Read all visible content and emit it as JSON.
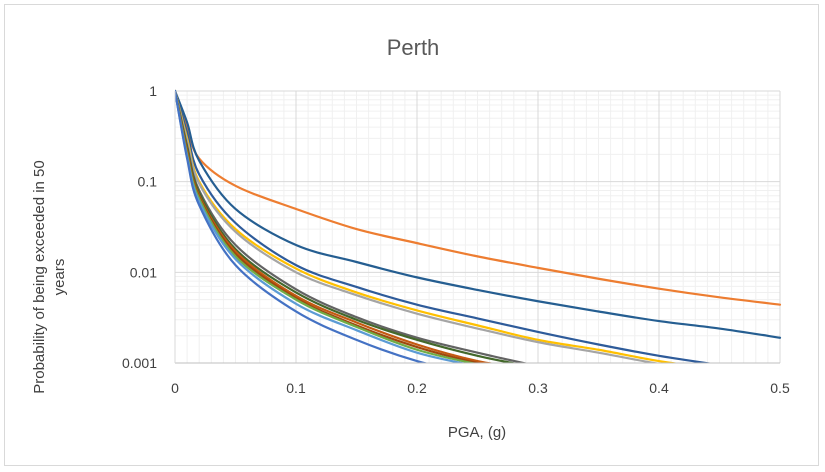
{
  "chart_data": {
    "type": "line",
    "title": "Perth",
    "xlabel": "PGA, (g)",
    "ylabel_lines": [
      "Probability of being exceeded in 50",
      "years"
    ],
    "xlim": [
      0,
      0.5
    ],
    "ylim": [
      0.001,
      1
    ],
    "yscale": "log",
    "grid": "major and minor",
    "legend": "none",
    "x_ticks": [
      {
        "v": 0,
        "label": "0"
      },
      {
        "v": 0.1,
        "label": "0.1"
      },
      {
        "v": 0.2,
        "label": "0.2"
      },
      {
        "v": 0.3,
        "label": "0.3"
      },
      {
        "v": 0.4,
        "label": "0.4"
      },
      {
        "v": 0.5,
        "label": "0.5"
      }
    ],
    "y_ticks": [
      {
        "v": 1,
        "label": "1"
      },
      {
        "v": 0.1,
        "label": "0.1"
      },
      {
        "v": 0.01,
        "label": "0.01"
      },
      {
        "v": 0.001,
        "label": "0.001"
      }
    ],
    "series": [
      {
        "color": "#ED7D31",
        "x": [
          0,
          0.01,
          0.02,
          0.05,
          0.1,
          0.15,
          0.2,
          0.25,
          0.3,
          0.35,
          0.4,
          0.45,
          0.5
        ],
        "y": [
          1,
          0.4,
          0.18,
          0.09,
          0.05,
          0.03,
          0.021,
          0.015,
          0.0112,
          0.0085,
          0.0066,
          0.0053,
          0.0044
        ]
      },
      {
        "color": "#255E91",
        "x": [
          0,
          0.01,
          0.02,
          0.05,
          0.1,
          0.15,
          0.2,
          0.25,
          0.3,
          0.35,
          0.4,
          0.45,
          0.5
        ],
        "y": [
          1,
          0.45,
          0.17,
          0.05,
          0.02,
          0.013,
          0.0088,
          0.0064,
          0.0048,
          0.0037,
          0.0029,
          0.0024,
          0.0019
        ]
      },
      {
        "color": "#2E5B9A",
        "x": [
          0,
          0.01,
          0.02,
          0.05,
          0.1,
          0.15,
          0.2,
          0.25,
          0.3,
          0.35,
          0.4,
          0.45
        ],
        "y": [
          1,
          0.35,
          0.12,
          0.035,
          0.012,
          0.0069,
          0.0044,
          0.0031,
          0.0022,
          0.0016,
          0.0012,
          0.00095
        ]
      },
      {
        "color": "#FFC000",
        "x": [
          0,
          0.01,
          0.02,
          0.05,
          0.1,
          0.15,
          0.2,
          0.25,
          0.3,
          0.35,
          0.4,
          0.45
        ],
        "y": [
          1,
          0.3,
          0.1,
          0.03,
          0.011,
          0.006,
          0.0038,
          0.0026,
          0.0018,
          0.0014,
          0.00105,
          0.00085
        ]
      },
      {
        "color": "#A5A5A5",
        "x": [
          0,
          0.01,
          0.02,
          0.05,
          0.1,
          0.15,
          0.2,
          0.25,
          0.3,
          0.35,
          0.4,
          0.45
        ],
        "y": [
          1,
          0.28,
          0.095,
          0.028,
          0.01,
          0.0056,
          0.0035,
          0.0024,
          0.0017,
          0.0013,
          0.00098,
          0.0008
        ]
      },
      {
        "color": "#636363",
        "x": [
          0,
          0.01,
          0.02,
          0.05,
          0.1,
          0.15,
          0.2,
          0.25,
          0.3
        ],
        "y": [
          1,
          0.25,
          0.08,
          0.02,
          0.0065,
          0.0032,
          0.0019,
          0.0013,
          0.00092
        ]
      },
      {
        "color": "#43682B",
        "x": [
          0,
          0.01,
          0.02,
          0.05,
          0.1,
          0.15,
          0.2,
          0.25,
          0.3
        ],
        "y": [
          1,
          0.24,
          0.075,
          0.018,
          0.006,
          0.003,
          0.0018,
          0.0012,
          0.00088
        ]
      },
      {
        "color": "#C55A11",
        "x": [
          0,
          0.01,
          0.02,
          0.05,
          0.1,
          0.15,
          0.2,
          0.25,
          0.28
        ],
        "y": [
          1,
          0.22,
          0.07,
          0.017,
          0.0055,
          0.0028,
          0.0016,
          0.00105,
          0.00092
        ]
      },
      {
        "color": "#9E480E",
        "x": [
          0,
          0.01,
          0.02,
          0.05,
          0.1,
          0.15,
          0.2,
          0.25,
          0.27
        ],
        "y": [
          1,
          0.21,
          0.068,
          0.016,
          0.0052,
          0.0026,
          0.0015,
          0.001,
          0.00092
        ]
      },
      {
        "color": "#70AD47",
        "x": [
          0,
          0.01,
          0.02,
          0.05,
          0.1,
          0.15,
          0.2,
          0.25,
          0.27
        ],
        "y": [
          1,
          0.2,
          0.065,
          0.015,
          0.005,
          0.0025,
          0.0014,
          0.00097,
          0.0009
        ]
      },
      {
        "color": "#5B9BD5",
        "x": [
          0,
          0.01,
          0.02,
          0.05,
          0.1,
          0.15,
          0.2,
          0.25,
          0.26
        ],
        "y": [
          1,
          0.19,
          0.06,
          0.014,
          0.0045,
          0.0023,
          0.0013,
          0.00092,
          0.00088
        ]
      },
      {
        "color": "#4472C4",
        "x": [
          0,
          0.01,
          0.02,
          0.05,
          0.1,
          0.15,
          0.2,
          0.24
        ],
        "y": [
          1,
          0.18,
          0.055,
          0.012,
          0.0037,
          0.0018,
          0.00105,
          0.0008
        ]
      }
    ]
  }
}
